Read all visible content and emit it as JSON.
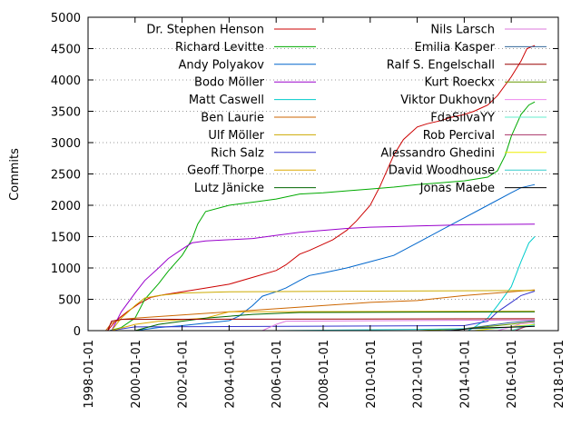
{
  "chart_data": {
    "type": "line",
    "ylabel": "Commits",
    "xlabel": "",
    "xlim": [
      "1998-01-01",
      "2018-01-01"
    ],
    "ylim": [
      0,
      5000
    ],
    "x_ticks": [
      "1998-01-01",
      "2000-01-01",
      "2002-01-01",
      "2004-01-01",
      "2006-01-01",
      "2008-01-01",
      "2010-01-01",
      "2012-01-01",
      "2014-01-01",
      "2016-01-01",
      "2018-01-01"
    ],
    "y_ticks": [
      0,
      500,
      1000,
      1500,
      2000,
      2500,
      3000,
      3500,
      4000,
      4500,
      5000
    ],
    "grid": "dotted",
    "legend_placement": "inside-top",
    "series": [
      {
        "name": "Dr. Stephen Henson",
        "color": "#cc0000",
        "points": [
          [
            "1998-11-01",
            0
          ],
          [
            "1999-03-01",
            150
          ],
          [
            "1999-09-01",
            300
          ],
          [
            "2000-03-01",
            430
          ],
          [
            "2000-09-01",
            530
          ],
          [
            "2001-03-01",
            570
          ],
          [
            "2002-01-01",
            620
          ],
          [
            "2003-01-01",
            680
          ],
          [
            "2004-01-01",
            740
          ],
          [
            "2005-01-01",
            850
          ],
          [
            "2006-01-01",
            960
          ],
          [
            "2006-06-01",
            1050
          ],
          [
            "2007-01-01",
            1220
          ],
          [
            "2007-06-01",
            1280
          ],
          [
            "2008-01-01",
            1380
          ],
          [
            "2008-06-01",
            1450
          ],
          [
            "2009-01-01",
            1600
          ],
          [
            "2009-06-01",
            1750
          ],
          [
            "2010-01-01",
            2000
          ],
          [
            "2010-06-01",
            2300
          ],
          [
            "2011-01-01",
            2800
          ],
          [
            "2011-06-01",
            3050
          ],
          [
            "2012-01-01",
            3250
          ],
          [
            "2012-06-01",
            3300
          ],
          [
            "2013-01-01",
            3350
          ],
          [
            "2013-06-01",
            3400
          ],
          [
            "2014-01-01",
            3450
          ],
          [
            "2014-06-01",
            3500
          ],
          [
            "2015-01-01",
            3600
          ],
          [
            "2015-06-01",
            3750
          ],
          [
            "2016-01-01",
            4050
          ],
          [
            "2016-06-01",
            4300
          ],
          [
            "2016-09-01",
            4500
          ],
          [
            "2017-01-01",
            4550
          ]
        ]
      },
      {
        "name": "Richard Levitte",
        "color": "#00aa00",
        "points": [
          [
            "1998-12-01",
            0
          ],
          [
            "1999-06-01",
            50
          ],
          [
            "2000-01-01",
            200
          ],
          [
            "2000-06-01",
            500
          ],
          [
            "2001-01-01",
            750
          ],
          [
            "2001-06-01",
            950
          ],
          [
            "2002-01-01",
            1200
          ],
          [
            "2002-06-01",
            1450
          ],
          [
            "2002-09-01",
            1700
          ],
          [
            "2003-01-01",
            1900
          ],
          [
            "2004-01-01",
            2000
          ],
          [
            "2005-01-01",
            2050
          ],
          [
            "2006-01-01",
            2100
          ],
          [
            "2007-01-01",
            2180
          ],
          [
            "2008-01-01",
            2200
          ],
          [
            "2009-01-01",
            2230
          ],
          [
            "2010-01-01",
            2260
          ],
          [
            "2011-01-01",
            2290
          ],
          [
            "2012-01-01",
            2330
          ],
          [
            "2013-01-01",
            2360
          ],
          [
            "2014-01-01",
            2390
          ],
          [
            "2015-01-01",
            2450
          ],
          [
            "2015-06-01",
            2550
          ],
          [
            "2015-10-01",
            2800
          ],
          [
            "2016-01-01",
            3100
          ],
          [
            "2016-06-01",
            3450
          ],
          [
            "2016-10-01",
            3600
          ],
          [
            "2017-01-01",
            3650
          ]
        ]
      },
      {
        "name": "Andy Polyakov",
        "color": "#0066cc",
        "points": [
          [
            "2000-01-01",
            0
          ],
          [
            "2001-01-01",
            50
          ],
          [
            "2002-01-01",
            80
          ],
          [
            "2003-01-01",
            120
          ],
          [
            "2004-01-01",
            160
          ],
          [
            "2004-06-01",
            230
          ],
          [
            "2005-01-01",
            400
          ],
          [
            "2005-06-01",
            550
          ],
          [
            "2006-01-01",
            620
          ],
          [
            "2006-06-01",
            680
          ],
          [
            "2007-01-01",
            800
          ],
          [
            "2007-06-01",
            880
          ],
          [
            "2008-01-01",
            920
          ],
          [
            "2009-01-01",
            1000
          ],
          [
            "2010-01-01",
            1100
          ],
          [
            "2011-01-01",
            1200
          ],
          [
            "2012-01-01",
            1400
          ],
          [
            "2013-01-01",
            1600
          ],
          [
            "2014-01-01",
            1800
          ],
          [
            "2015-01-01",
            2000
          ],
          [
            "2016-01-01",
            2200
          ],
          [
            "2016-06-01",
            2280
          ],
          [
            "2017-01-01",
            2330
          ]
        ]
      },
      {
        "name": "Bodo Möller",
        "color": "#9900cc",
        "points": [
          [
            "1999-01-01",
            0
          ],
          [
            "1999-06-01",
            300
          ],
          [
            "2000-01-01",
            600
          ],
          [
            "2000-06-01",
            800
          ],
          [
            "2001-01-01",
            1000
          ],
          [
            "2001-06-01",
            1150
          ],
          [
            "2002-01-01",
            1300
          ],
          [
            "2002-06-01",
            1400
          ],
          [
            "2003-01-01",
            1430
          ],
          [
            "2004-01-01",
            1450
          ],
          [
            "2005-01-01",
            1470
          ],
          [
            "2006-01-01",
            1520
          ],
          [
            "2007-01-01",
            1570
          ],
          [
            "2008-01-01",
            1600
          ],
          [
            "2009-01-01",
            1630
          ],
          [
            "2010-01-01",
            1650
          ],
          [
            "2011-01-01",
            1660
          ],
          [
            "2012-01-01",
            1670
          ],
          [
            "2013-01-01",
            1680
          ],
          [
            "2014-01-01",
            1690
          ],
          [
            "2017-01-01",
            1700
          ]
        ]
      },
      {
        "name": "Matt Caswell",
        "color": "#00cccc",
        "points": [
          [
            "2014-03-01",
            0
          ],
          [
            "2014-06-01",
            50
          ],
          [
            "2015-01-01",
            200
          ],
          [
            "2015-06-01",
            400
          ],
          [
            "2016-01-01",
            700
          ],
          [
            "2016-06-01",
            1100
          ],
          [
            "2016-10-01",
            1400
          ],
          [
            "2017-01-01",
            1500
          ]
        ]
      },
      {
        "name": "Ben Laurie",
        "color": "#cc6600",
        "points": [
          [
            "1998-10-01",
            0
          ],
          [
            "1999-01-01",
            120
          ],
          [
            "1999-06-01",
            180
          ],
          [
            "2000-01-01",
            200
          ],
          [
            "2002-01-01",
            250
          ],
          [
            "2004-01-01",
            300
          ],
          [
            "2006-01-01",
            350
          ],
          [
            "2008-01-01",
            400
          ],
          [
            "2010-01-01",
            450
          ],
          [
            "2012-01-01",
            480
          ],
          [
            "2014-01-01",
            560
          ],
          [
            "2016-01-01",
            620
          ],
          [
            "2017-01-01",
            650
          ]
        ]
      },
      {
        "name": "Ulf Möller",
        "color": "#ccaa00",
        "points": [
          [
            "1999-01-01",
            0
          ],
          [
            "1999-06-01",
            200
          ],
          [
            "2000-01-01",
            400
          ],
          [
            "2000-06-01",
            520
          ],
          [
            "2001-01-01",
            560
          ],
          [
            "2002-01-01",
            600
          ],
          [
            "2004-01-01",
            620
          ],
          [
            "2017-01-01",
            640
          ]
        ]
      },
      {
        "name": "Rich Salz",
        "color": "#3333cc",
        "points": [
          [
            "1998-12-01",
            0
          ],
          [
            "2000-01-01",
            60
          ],
          [
            "2014-01-01",
            80
          ],
          [
            "2015-01-01",
            150
          ],
          [
            "2015-06-01",
            300
          ],
          [
            "2016-01-01",
            450
          ],
          [
            "2016-06-01",
            560
          ],
          [
            "2017-01-01",
            630
          ]
        ]
      },
      {
        "name": "Geoff Thorpe",
        "color": "#ddaa00",
        "points": [
          [
            "1999-01-01",
            0
          ],
          [
            "2000-01-01",
            100
          ],
          [
            "2001-01-01",
            150
          ],
          [
            "2003-01-01",
            200
          ],
          [
            "2004-01-01",
            300
          ],
          [
            "2017-01-01",
            310
          ]
        ]
      },
      {
        "name": "Lutz Jänicke",
        "color": "#006600",
        "points": [
          [
            "2000-01-01",
            0
          ],
          [
            "2001-01-01",
            100
          ],
          [
            "2002-01-01",
            150
          ],
          [
            "2003-01-01",
            200
          ],
          [
            "2005-01-01",
            260
          ],
          [
            "2007-01-01",
            290
          ],
          [
            "2017-01-01",
            300
          ]
        ]
      },
      {
        "name": "Nils Larsch",
        "color": "#dd77dd",
        "points": [
          [
            "2005-06-01",
            0
          ],
          [
            "2006-01-01",
            100
          ],
          [
            "2006-06-01",
            150
          ],
          [
            "2017-01-01",
            170
          ]
        ]
      },
      {
        "name": "Emilia Kasper",
        "color": "#336699",
        "points": [
          [
            "2013-01-01",
            0
          ],
          [
            "2014-01-01",
            30
          ],
          [
            "2015-01-01",
            80
          ],
          [
            "2016-01-01",
            130
          ],
          [
            "2017-01-01",
            160
          ]
        ]
      },
      {
        "name": "Ralf S. Engelschall",
        "color": "#990000",
        "points": [
          [
            "1998-11-01",
            0
          ],
          [
            "1999-01-01",
            150
          ],
          [
            "1999-06-01",
            180
          ],
          [
            "2017-01-01",
            190
          ]
        ]
      },
      {
        "name": "Kurt Roeckx",
        "color": "#669900",
        "points": [
          [
            "2012-01-01",
            0
          ],
          [
            "2014-01-01",
            30
          ],
          [
            "2015-06-01",
            80
          ],
          [
            "2016-06-01",
            120
          ],
          [
            "2017-01-01",
            140
          ]
        ]
      },
      {
        "name": "Viktor Dukhovni",
        "color": "#ee88ee",
        "points": [
          [
            "2015-06-01",
            0
          ],
          [
            "2016-01-01",
            60
          ],
          [
            "2016-06-01",
            110
          ],
          [
            "2017-01-01",
            130
          ]
        ]
      },
      {
        "name": "FdaSilvaYY",
        "color": "#66eecc",
        "points": [
          [
            "2016-01-01",
            0
          ],
          [
            "2016-06-01",
            50
          ],
          [
            "2017-01-01",
            110
          ]
        ]
      },
      {
        "name": "Rob Percival",
        "color": "#aa3366",
        "points": [
          [
            "2016-03-01",
            0
          ],
          [
            "2016-08-01",
            60
          ],
          [
            "2017-01-01",
            100
          ]
        ]
      },
      {
        "name": "Alessandro Ghedini",
        "color": "#eeee00",
        "points": [
          [
            "2014-06-01",
            0
          ],
          [
            "2015-06-01",
            40
          ],
          [
            "2016-06-01",
            80
          ],
          [
            "2017-01-01",
            95
          ]
        ]
      },
      {
        "name": "David Woodhouse",
        "color": "#33cccc",
        "points": [
          [
            "2006-01-01",
            0
          ],
          [
            "2012-01-01",
            20
          ],
          [
            "2015-06-01",
            40
          ],
          [
            "2016-06-01",
            70
          ],
          [
            "2017-01-01",
            85
          ]
        ]
      },
      {
        "name": "Jonas Maebe",
        "color": "#000000",
        "points": [
          [
            "2013-06-01",
            0
          ],
          [
            "2014-06-01",
            40
          ],
          [
            "2016-06-01",
            60
          ],
          [
            "2017-01-01",
            70
          ]
        ]
      }
    ]
  }
}
